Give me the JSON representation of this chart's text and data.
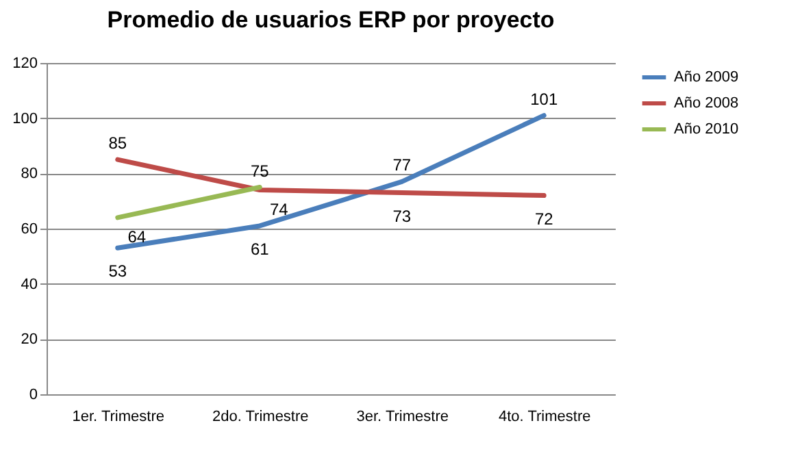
{
  "chart_data": {
    "type": "line",
    "title": "Promedio de usuarios ERP por proyecto",
    "categories": [
      "1er. Trimestre",
      "2do. Trimestre",
      "3er. Trimestre",
      "4to. Trimestre"
    ],
    "series": [
      {
        "name": "Año 2009",
        "color": "#4a7ebb",
        "values": [
          53,
          61,
          77,
          101
        ]
      },
      {
        "name": "Año 2008",
        "color": "#be4b48",
        "values": [
          85,
          74,
          73,
          72
        ]
      },
      {
        "name": "Año 2010",
        "color": "#98b954",
        "values": [
          64,
          75,
          null,
          null
        ]
      }
    ],
    "ylim": [
      0,
      120
    ],
    "yticks": [
      0,
      20,
      40,
      60,
      80,
      100,
      120
    ],
    "grid": "y",
    "legend": "right",
    "data_labels": true,
    "marker": "none",
    "line_style": "solid"
  }
}
